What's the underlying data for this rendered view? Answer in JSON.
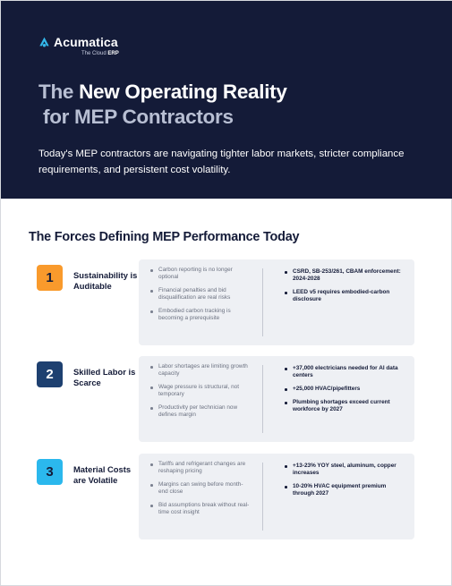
{
  "header": {
    "logo_text": "Acumatica",
    "logo_tag_prefix": "The Cloud",
    "logo_tag_bold": "ERP",
    "title_line1_muted": "The",
    "title_line1_white": "New Operating Reality",
    "title_line2": "for MEP Contractors",
    "subtitle": "Today's MEP contractors are navigating tighter labor markets, stricter compliance requirements, and persistent cost volatility."
  },
  "colors": {
    "navy": "#141b38",
    "orange": "#f99a2c",
    "dark_blue": "#1e4070",
    "light_blue": "#2bb8ed",
    "logo_blue": "#33b7ea"
  },
  "section": {
    "title": "The Forces Defining MEP Performance Today",
    "rows": [
      {
        "number": "1",
        "label": "Sustainability is Auditable",
        "left": [
          "Carbon reporting is no longer optional",
          "Financial penalties and bid disqualification are real risks",
          "Embodied carbon tracking is becoming a prerequisite"
        ],
        "right": [
          "CSRD, SB-253/261, CBAM enforcement: 2024-2028",
          "LEED v5 requires embodied-carbon disclosure"
        ]
      },
      {
        "number": "2",
        "label": "Skilled Labor is Scarce",
        "left": [
          "Labor shortages are limiting growth capacity",
          "Wage pressure is structural, not temporary",
          "Productivity per technician now defines margin"
        ],
        "right": [
          "+37,000 electricians needed for AI data centers",
          "+25,000 HVAC/pipefitters",
          "Plumbing shortages exceed current workforce by 2027"
        ]
      },
      {
        "number": "3",
        "label": "Material Costs are Volatile",
        "left": [
          "Tariffs and refrigerant changes are reshaping pricing",
          "Margins can swing before month-end close",
          "Bid assumptions break without real-time cost insight"
        ],
        "right": [
          "+13-23% YOY steel, aluminum, copper increases",
          "10-20% HVAC equipment premium through 2027"
        ]
      }
    ]
  }
}
